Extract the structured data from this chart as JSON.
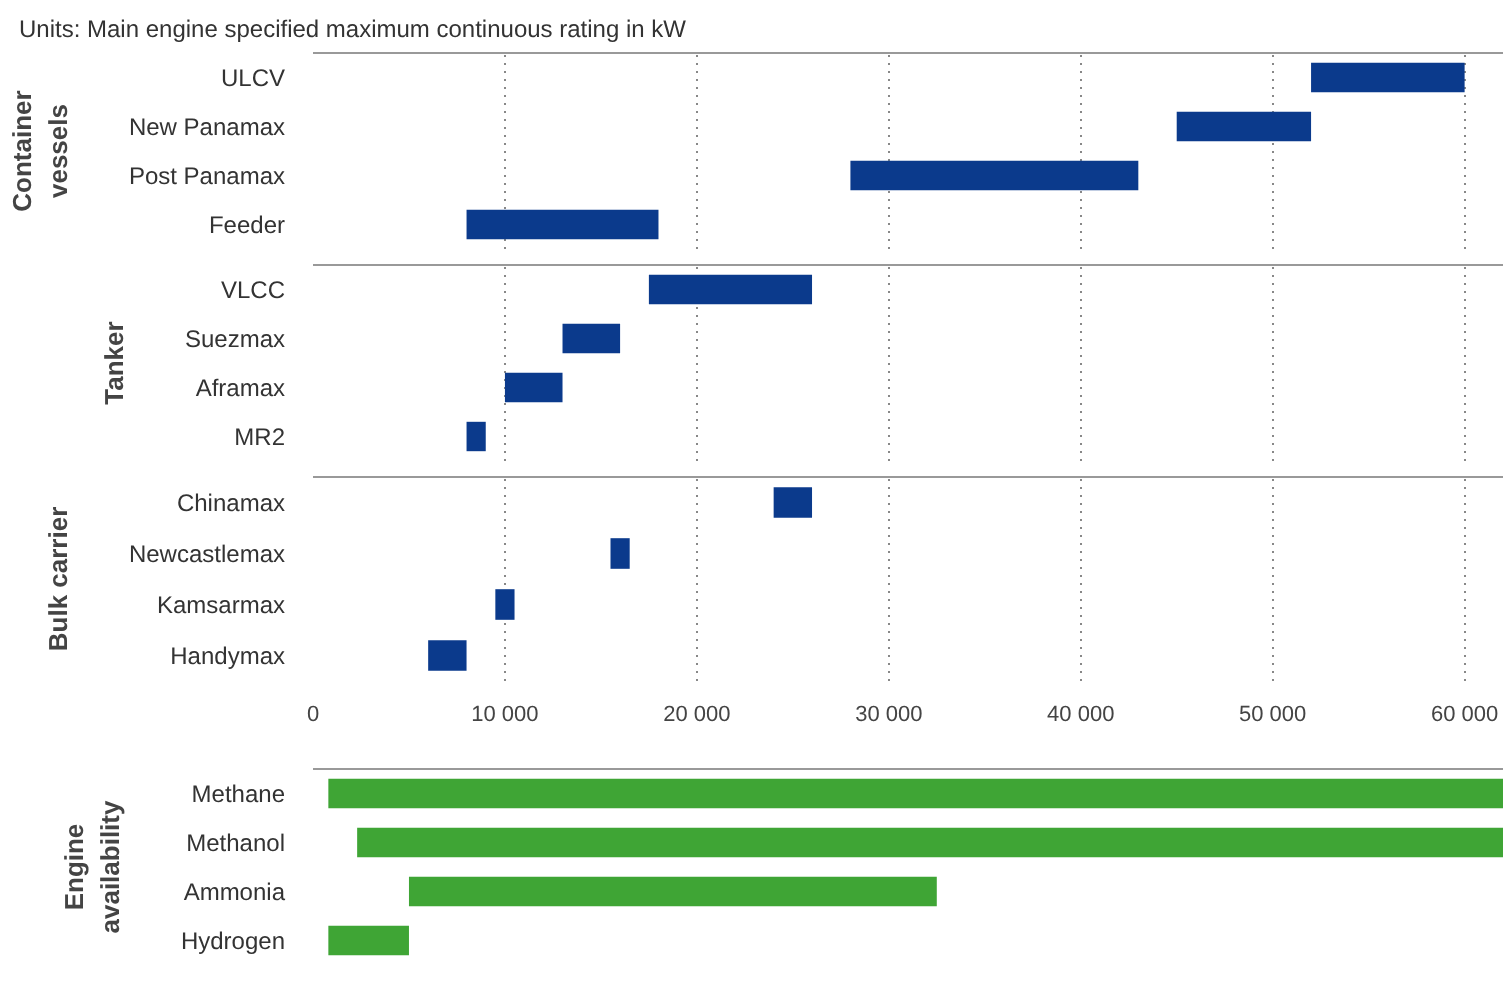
{
  "chart_data": [
    {
      "type": "bar",
      "orientation": "horizontal",
      "title": "Units: Main engine specified maximum continuous rating in kW",
      "ylabel": "Container vessels",
      "categories": [
        "ULCV",
        "New Panamax",
        "Post Panamax",
        "Feeder"
      ],
      "base": [
        52000,
        45000,
        28000,
        8000
      ],
      "values": [
        8000,
        7000,
        15000,
        10000
      ],
      "color": "#0b3a8c",
      "xlim": [
        0,
        62000
      ],
      "xticks": [
        {
          "value": 10000,
          "label": null
        },
        {
          "value": 20000,
          "label": null
        },
        {
          "value": 30000,
          "label": null
        },
        {
          "value": 40000,
          "label": null
        },
        {
          "value": 50000,
          "label": null
        },
        {
          "value": 60000,
          "label": null
        }
      ],
      "grid": "x",
      "tick_labels": "y"
    },
    {
      "type": "bar",
      "orientation": "horizontal",
      "ylabel": "Tanker",
      "categories": [
        "VLCC",
        "Suezmax",
        "Aframax",
        "MR2"
      ],
      "base": [
        17500,
        13000,
        10000,
        8000
      ],
      "values": [
        8500,
        3000,
        3000,
        1000
      ],
      "color": "#0b3a8c",
      "xlim": [
        0,
        62000
      ],
      "xticks": [
        {
          "value": 10000,
          "label": null
        },
        {
          "value": 20000,
          "label": null
        },
        {
          "value": 30000,
          "label": null
        },
        {
          "value": 40000,
          "label": null
        },
        {
          "value": 50000,
          "label": null
        },
        {
          "value": 60000,
          "label": null
        }
      ],
      "grid": "x",
      "tick_labels": "y"
    },
    {
      "type": "bar",
      "orientation": "horizontal",
      "ylabel": "Bulk carrier",
      "categories": [
        "Chinamax",
        "Newcastlemax",
        "Kamsarmax",
        "Handymax"
      ],
      "base": [
        24000,
        15500,
        9500,
        6000
      ],
      "values": [
        2000,
        1000,
        1000,
        2000
      ],
      "color": "#0b3a8c",
      "xlim": [
        0,
        62000
      ],
      "xticks": [
        0,
        {
          "value": 10000,
          "label": "10 000"
        },
        {
          "value": 20000,
          "label": "20 000"
        },
        {
          "value": 30000,
          "label": "30 000"
        },
        {
          "value": 40000,
          "label": "40 000"
        },
        {
          "value": 50000,
          "label": "50 000"
        },
        {
          "value": 60000,
          "label": "60 000"
        }
      ],
      "grid": "x"
    },
    {
      "type": "bar",
      "orientation": "horizontal",
      "ylabel": "Engine availability",
      "categories": [
        "Methane",
        "Methanol",
        "Ammonia",
        "Hydrogen"
      ],
      "base": [
        800,
        2300,
        5000,
        800
      ],
      "values": [
        61200,
        59700,
        27500,
        4200
      ],
      "color": "#3fa535",
      "xlim": [
        0,
        62000
      ],
      "tick_labels": "y"
    }
  ]
}
